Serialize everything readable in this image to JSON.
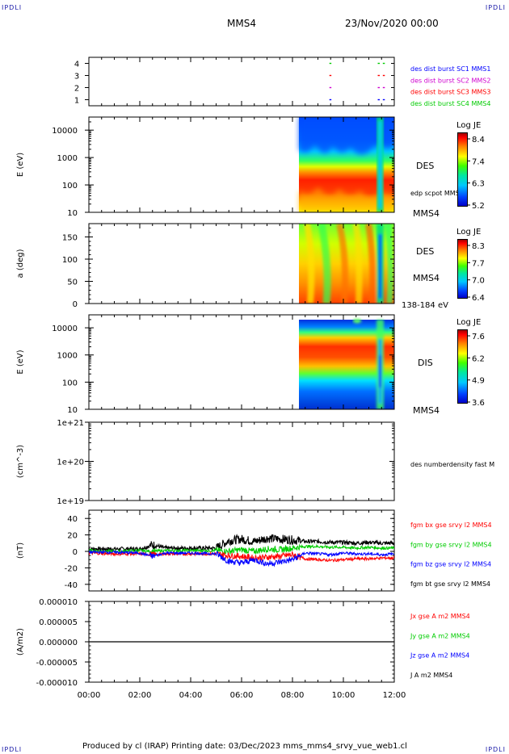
{
  "header": {
    "corner_label": "IPDLI",
    "spacecraft": "MMS4",
    "date": "23/Nov/2020 00:00"
  },
  "footer": {
    "text": "Produced by cl (IRAP)   Printing date: 03/Dec/2023   mms_mms4_srvy_vue_web1.cl"
  },
  "colors": {
    "blue": "#0000ff",
    "magenta": "#d000d0",
    "red": "#ff0000",
    "green": "#00cc00",
    "black": "#000000"
  },
  "chart_data": [
    {
      "type": "scatter",
      "panel": "burst",
      "ylim": [
        0.5,
        4.5
      ],
      "ytick_labels": [
        "4",
        "3",
        "2",
        "1"
      ],
      "xlim": [
        0,
        12
      ],
      "series": [
        {
          "name": "des dist burst SC1 MMS1",
          "y": 1,
          "color": "#0000ff",
          "x": [
            9.45,
            11.35,
            11.55
          ]
        },
        {
          "name": "des dist burst SC2 MMS2",
          "y": 2,
          "color": "#d000d0",
          "x": [
            9.45,
            11.35,
            11.55
          ]
        },
        {
          "name": "des dist burst SC3 MMS3",
          "y": 3,
          "color": "#ff0000",
          "x": [
            9.45,
            11.35,
            11.55
          ]
        },
        {
          "name": "des dist burst SC4 MMS4",
          "y": 4,
          "color": "#00cc00",
          "x": [
            9.45,
            11.35,
            11.55
          ]
        }
      ]
    },
    {
      "type": "heatmap",
      "panel": "des_energy",
      "ylabel": "E (eV)",
      "yscale": "log",
      "ylim": [
        10,
        30000
      ],
      "ytick_labels": [
        "10000",
        "1000",
        "100",
        "10"
      ],
      "xlim": [
        0,
        12
      ],
      "data_x_range": [
        8.3,
        12
      ],
      "band_center_eV": 70,
      "labels": [
        "DES",
        "edp scpot MMS4",
        "MMS4"
      ],
      "colorbar": {
        "title": "Log JE",
        "ticks": [
          "8.4",
          "7.4",
          "6.3",
          "5.2"
        ]
      }
    },
    {
      "type": "heatmap",
      "panel": "des_pitch",
      "ylabel": "a (deg)",
      "ylim": [
        0,
        180
      ],
      "ytick_labels": [
        "150",
        "100",
        "50",
        "0"
      ],
      "xlim": [
        0,
        12
      ],
      "data_x_range": [
        8.3,
        12
      ],
      "labels": [
        "DES",
        "MMS4",
        "138-184 eV"
      ],
      "colorbar": {
        "title": "Log JE",
        "ticks": [
          "8.3",
          "7.7",
          "7.0",
          "6.4"
        ]
      }
    },
    {
      "type": "heatmap",
      "panel": "dis_energy",
      "ylabel": "E (eV)",
      "yscale": "log",
      "ylim": [
        10,
        30000
      ],
      "ytick_labels": [
        "10000",
        "1000",
        "100",
        "10"
      ],
      "xlim": [
        0,
        12
      ],
      "data_x_range": [
        8.3,
        12
      ],
      "band_center_eV": 1500,
      "labels": [
        "DIS",
        "MMS4"
      ],
      "colorbar": {
        "title": "Log JE",
        "ticks": [
          "7.6",
          "6.2",
          "4.9",
          "3.6"
        ]
      }
    },
    {
      "type": "line",
      "panel": "density",
      "ylabel": "(cm^-3)",
      "yscale": "log",
      "ylim": [
        1e+19,
        1e+21
      ],
      "ytick_labels": [
        "1e+21",
        "1e+20",
        "1e+19"
      ],
      "xlim": [
        0,
        12
      ],
      "series": [
        {
          "name": "des numberdensity fast M",
          "x": [],
          "y": []
        }
      ]
    },
    {
      "type": "line",
      "panel": "fgm",
      "ylabel": "(nT)",
      "ylim": [
        -48,
        50
      ],
      "ytick_labels": [
        "40",
        "20",
        "0",
        "-20",
        "-40"
      ],
      "xlim": [
        0,
        12
      ],
      "series": [
        {
          "name": "fgm bx gse srvy l2 MMS4",
          "color": "#ff0000",
          "x": [
            0,
            1,
            2,
            2.5,
            3,
            4,
            5,
            5.5,
            6,
            6.5,
            7,
            7.5,
            8,
            8.5,
            9,
            9.5,
            10,
            10.5,
            11,
            11.5,
            12
          ],
          "y": [
            -2,
            -3,
            -3,
            -4,
            -3,
            -3,
            -3,
            -5,
            -6,
            -8,
            -7,
            -6,
            -4,
            -9,
            -10,
            -11,
            -10,
            -9,
            -9,
            -8,
            -8
          ]
        },
        {
          "name": "fgm by gse srvy l2 MMS4",
          "color": "#00cc00",
          "x": [
            0,
            1,
            2,
            2.5,
            3,
            4,
            5,
            5.5,
            6,
            6.5,
            7,
            7.5,
            8,
            8.5,
            9,
            9.5,
            10,
            10.5,
            11,
            11.5,
            12
          ],
          "y": [
            1,
            0,
            1,
            0,
            1,
            1,
            1,
            0,
            2,
            0,
            3,
            2,
            4,
            6,
            6,
            5,
            5,
            4,
            5,
            4,
            4
          ]
        },
        {
          "name": "fgm bz gse srvy l2 MMS4",
          "color": "#0000ff",
          "x": [
            0,
            1,
            2,
            2.5,
            3,
            4,
            5,
            5.5,
            6,
            6.5,
            7,
            7.5,
            8,
            8.5,
            9,
            9.5,
            10,
            10.5,
            11,
            11.5,
            12
          ],
          "y": [
            -1,
            -1,
            -2,
            -6,
            -2,
            -2,
            -3,
            -12,
            -14,
            -10,
            -15,
            -13,
            -10,
            -2,
            -3,
            -4,
            -2,
            -3,
            -3,
            -4,
            -3
          ]
        },
        {
          "name": "fgm bt gse srvy l2 MMS4",
          "color": "#000000",
          "x": [
            0,
            1,
            2,
            2.5,
            3,
            4,
            5,
            5.5,
            6,
            6.5,
            7,
            7.5,
            8,
            8.5,
            9,
            9.5,
            10,
            10.5,
            11,
            11.5,
            12
          ],
          "y": [
            3,
            3,
            3,
            8,
            4,
            4,
            4,
            13,
            15,
            12,
            16,
            15,
            14,
            12,
            12,
            11,
            11,
            10,
            11,
            10,
            10
          ]
        }
      ]
    },
    {
      "type": "line",
      "panel": "current",
      "ylabel": "(A/m2)",
      "ylim": [
        -1e-05,
        1e-05
      ],
      "ytick_labels": [
        "0.000010",
        "0.000005",
        "0.000000",
        "-0.000005",
        "-0.000010"
      ],
      "xlim": [
        0,
        12
      ],
      "xtick_labels": [
        "00:00",
        "02:00",
        "04:00",
        "06:00",
        "08:00",
        "10:00",
        "12:00"
      ],
      "series": [
        {
          "name": "Jx gse A m2 MMS4",
          "color": "#ff0000",
          "x": [
            0,
            12
          ],
          "y": [
            0,
            0
          ]
        },
        {
          "name": "Jy gse A m2 MMS4",
          "color": "#00cc00",
          "x": [
            0,
            12
          ],
          "y": [
            0,
            0
          ]
        },
        {
          "name": "Jz gse A m2 MMS4",
          "color": "#0000ff",
          "x": [
            0,
            12
          ],
          "y": [
            0,
            0
          ]
        },
        {
          "name": "J A m2 MMS4",
          "color": "#000000",
          "x": [
            0,
            12
          ],
          "y": [
            0,
            0
          ]
        }
      ]
    }
  ]
}
